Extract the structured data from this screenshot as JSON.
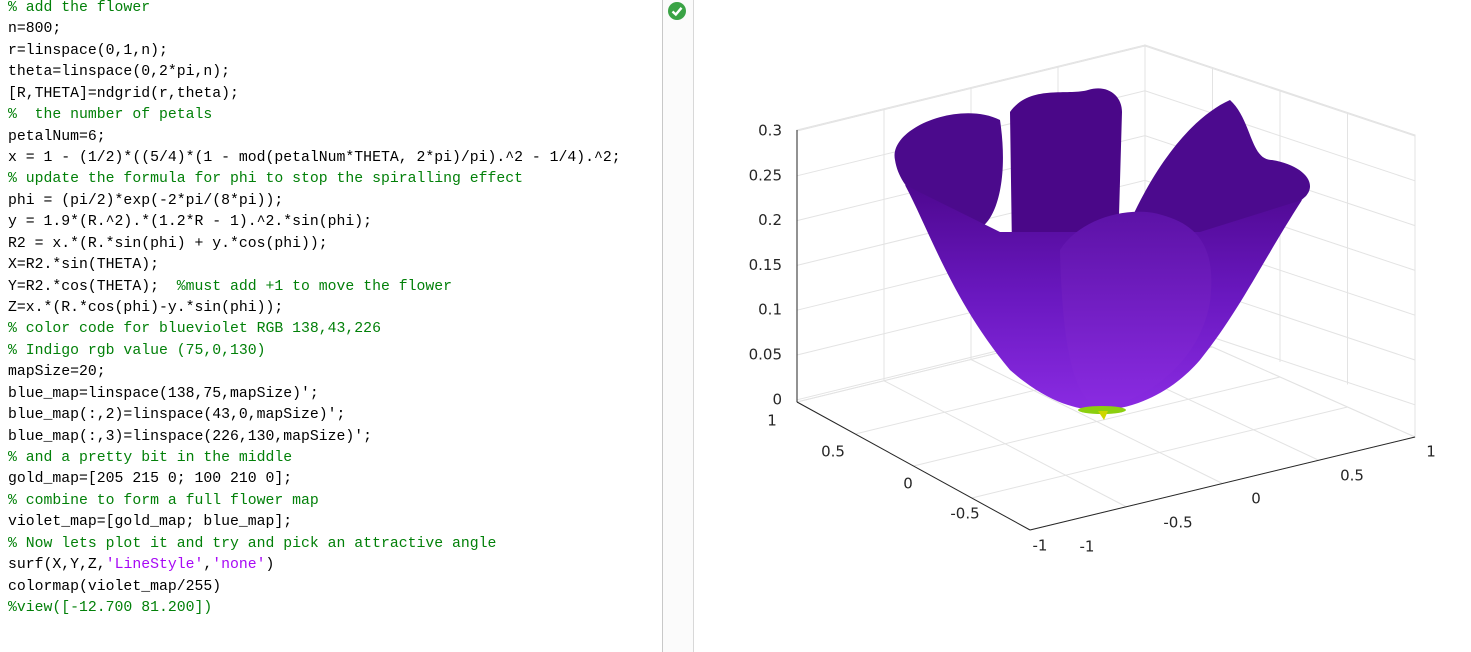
{
  "code": {
    "lines": [
      [
        {
          "text": "% add the flower",
          "kind": "comment"
        }
      ],
      [
        {
          "text": "n=800;",
          "kind": "code"
        }
      ],
      [
        {
          "text": "r=linspace(0,1,n);",
          "kind": "code"
        }
      ],
      [
        {
          "text": "theta=linspace(0,2*pi,n);",
          "kind": "code"
        }
      ],
      [
        {
          "text": "[R,THETA]=ndgrid(r,theta);",
          "kind": "code"
        }
      ],
      [
        {
          "text": "%  the number of petals",
          "kind": "comment"
        }
      ],
      [
        {
          "text": "petalNum=6;",
          "kind": "code"
        }
      ],
      [
        {
          "text": "x = 1 - (1/2)*((5/4)*(1 - mod(petalNum*THETA, 2*pi)/pi).^2 - 1/4).^2;",
          "kind": "code"
        }
      ],
      [
        {
          "text": "% update the formula for phi to stop the spiralling effect",
          "kind": "comment"
        }
      ],
      [
        {
          "text": "phi = (pi/2)*exp(-2*pi/(8*pi));",
          "kind": "code"
        }
      ],
      [
        {
          "text": "y = 1.9*(R.^2).*(1.2*R - 1).^2.*sin(phi);",
          "kind": "code"
        }
      ],
      [
        {
          "text": "R2 = x.*(R.*sin(phi) + y.*cos(phi));",
          "kind": "code"
        }
      ],
      [
        {
          "text": "X=R2.*sin(THETA);",
          "kind": "code"
        }
      ],
      [
        {
          "text": "Y=R2.*cos(THETA);  ",
          "kind": "code"
        },
        {
          "text": "%must add +1 to move the flower",
          "kind": "comment"
        }
      ],
      [
        {
          "text": "Z=x.*(R.*cos(phi)-y.*sin(phi));",
          "kind": "code"
        }
      ],
      [
        {
          "text": "% color code for blueviolet RGB 138,43,226",
          "kind": "comment"
        }
      ],
      [
        {
          "text": "% Indigo rgb value (75,0,130)",
          "kind": "comment"
        }
      ],
      [
        {
          "text": "mapSize=20;",
          "kind": "code"
        }
      ],
      [
        {
          "text": "blue_map=linspace(138,75,mapSize)';",
          "kind": "code"
        }
      ],
      [
        {
          "text": "blue_map(:,2)=linspace(43,0,mapSize)';",
          "kind": "code"
        }
      ],
      [
        {
          "text": "blue_map(:,3)=linspace(226,130,mapSize)';",
          "kind": "code"
        }
      ],
      [
        {
          "text": "% and a pretty bit in the middle",
          "kind": "comment"
        }
      ],
      [
        {
          "text": "gold_map=[205 215 0; 100 210 0];",
          "kind": "code"
        }
      ],
      [
        {
          "text": "% combine to form a full flower map",
          "kind": "comment"
        }
      ],
      [
        {
          "text": "violet_map=[gold_map; blue_map];",
          "kind": "code"
        }
      ],
      [
        {
          "text": "% Now lets plot it and try and pick an attractive angle",
          "kind": "comment"
        }
      ],
      [
        {
          "text": "surf(X,Y,Z,",
          "kind": "code"
        },
        {
          "text": "'LineStyle'",
          "kind": "string"
        },
        {
          "text": ",",
          "kind": "code"
        },
        {
          "text": "'none'",
          "kind": "string"
        },
        {
          "text": ")",
          "kind": "code"
        }
      ],
      [
        {
          "text": "colormap(violet_map/255)",
          "kind": "code"
        }
      ],
      [
        {
          "text": "%view([-12.700 81.200])",
          "kind": "comment"
        }
      ]
    ]
  },
  "plot": {
    "z_ticks": [
      "0.3",
      "0.25",
      "0.2",
      "0.15",
      "0.1",
      "0.05",
      "0"
    ],
    "left_ticks": [
      "1",
      "0.5",
      "0",
      "-0.5",
      "-1"
    ],
    "right_ticks": [
      "-1",
      "-0.5",
      "0",
      "0.5",
      "1"
    ]
  }
}
